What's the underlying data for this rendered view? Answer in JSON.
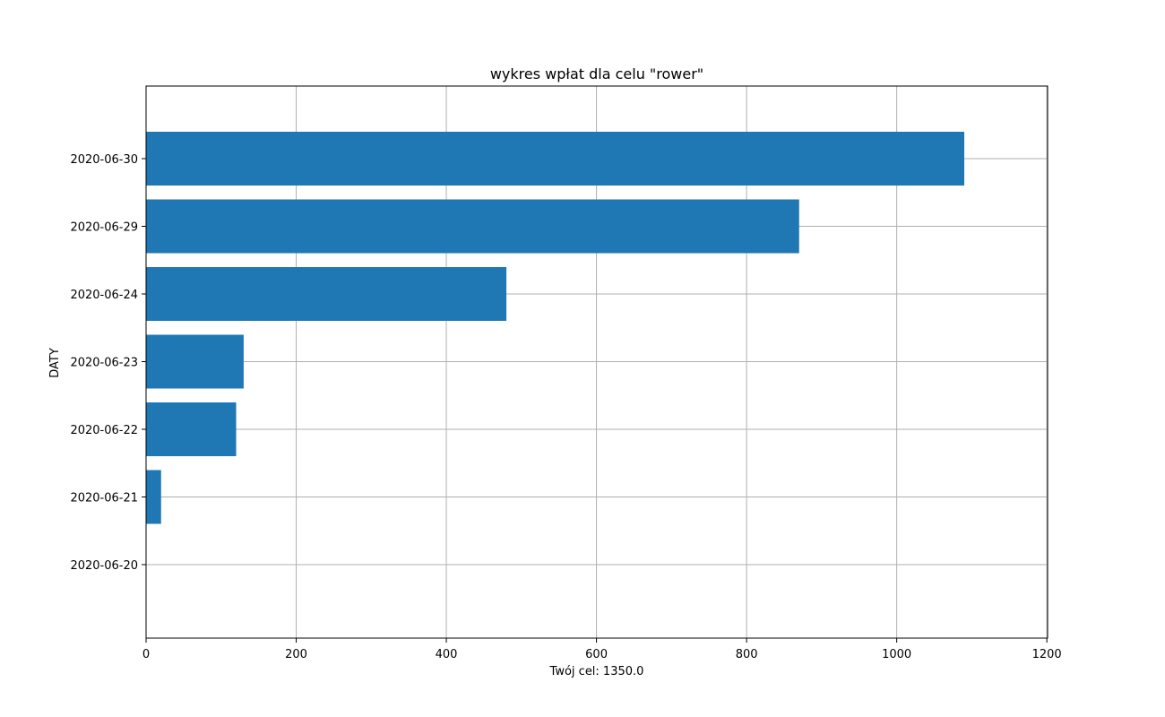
{
  "chart_data": {
    "type": "bar",
    "orientation": "horizontal",
    "title": "wykres wpłat dla celu \"rower\"",
    "xlabel": "Twój cel: 1350.0",
    "ylabel": "DATY",
    "categories": [
      "2020-06-20",
      "2020-06-21",
      "2020-06-22",
      "2020-06-23",
      "2020-06-24",
      "2020-06-29",
      "2020-06-30"
    ],
    "values": [
      0,
      20,
      120,
      130,
      480,
      870,
      1090
    ],
    "x_ticks": [
      0,
      200,
      400,
      600,
      800,
      1000,
      1200
    ],
    "xlim": [
      0,
      1201
    ],
    "grid": true,
    "bar_color": "#1f77b4",
    "grid_color": "#b0b0b0"
  }
}
